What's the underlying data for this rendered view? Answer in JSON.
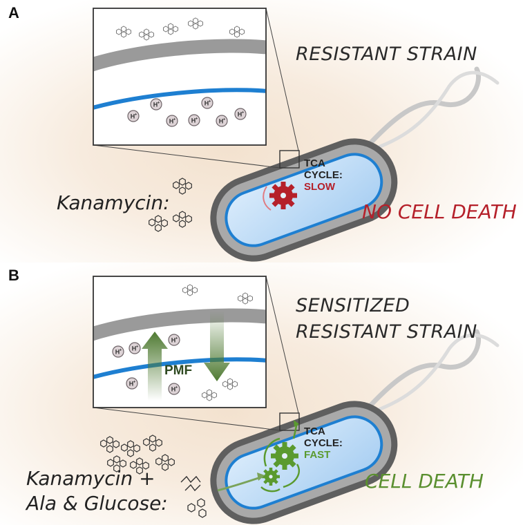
{
  "panel_a": {
    "letter": "A",
    "title": "RESISTANT STRAIN",
    "drug_label": "Kanamycin:",
    "tca_line1": "TCA",
    "tca_line2": "CYCLE:",
    "tca_speed": "SLOW",
    "outcome": "NO CELL DEATH",
    "proton_label": "H+",
    "outcome_color": "#b5202a"
  },
  "panel_b": {
    "letter": "B",
    "title_line1": "SENSITIZED",
    "title_line2": "RESISTANT STRAIN",
    "drug_line1": "Kanamycin +",
    "drug_line2": "Ala & Glucose:",
    "tca_line1": "TCA",
    "tca_line2": "CYCLE:",
    "tca_speed": "FAST",
    "outcome": "CELL DEATH",
    "pmf_label": "PMF",
    "proton_label": "H+",
    "outcome_color": "#5a8f2f"
  },
  "colors": {
    "membrane_blue": "#1e7fd1",
    "wall_gray": "#9a9a9a",
    "gear_red": "#b5202a",
    "gear_green": "#5a9a2f",
    "arrow_green": "#4f7a32"
  }
}
